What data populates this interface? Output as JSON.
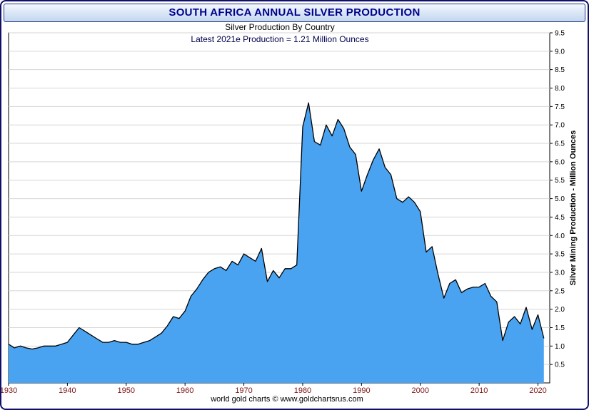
{
  "header": {
    "title": "SOUTH AFRICA ANNUAL SILVER PRODUCTION"
  },
  "chart_data": {
    "type": "area",
    "title": "Silver Production By Country",
    "annotation": "Latest 2021e Production = 1.21 Million Ounces",
    "ylabel": "Silver Mining Production - Million Ounces",
    "ylim": [
      0,
      9.5
    ],
    "ytick_step": 0.5,
    "grid": "horizontal",
    "legend": "none",
    "xticks": [
      1930,
      1940,
      1950,
      1960,
      1970,
      1980,
      1990,
      2000,
      2010,
      2020
    ],
    "years": [
      1930,
      1931,
      1932,
      1933,
      1934,
      1935,
      1936,
      1937,
      1938,
      1939,
      1940,
      1941,
      1942,
      1943,
      1944,
      1945,
      1946,
      1947,
      1948,
      1949,
      1950,
      1951,
      1952,
      1953,
      1954,
      1955,
      1956,
      1957,
      1958,
      1959,
      1960,
      1961,
      1962,
      1963,
      1964,
      1965,
      1966,
      1967,
      1968,
      1969,
      1970,
      1971,
      1972,
      1973,
      1974,
      1975,
      1976,
      1977,
      1978,
      1979,
      1980,
      1981,
      1982,
      1983,
      1984,
      1985,
      1986,
      1987,
      1988,
      1989,
      1990,
      1991,
      1992,
      1993,
      1994,
      1995,
      1996,
      1997,
      1998,
      1999,
      2000,
      2001,
      2002,
      2003,
      2004,
      2005,
      2006,
      2007,
      2008,
      2009,
      2010,
      2011,
      2012,
      2013,
      2014,
      2015,
      2016,
      2017,
      2018,
      2019,
      2020,
      2021
    ],
    "values": [
      1.05,
      0.95,
      1.0,
      0.95,
      0.92,
      0.95,
      1.0,
      1.0,
      1.0,
      1.05,
      1.1,
      1.3,
      1.5,
      1.4,
      1.3,
      1.2,
      1.1,
      1.1,
      1.15,
      1.1,
      1.1,
      1.05,
      1.05,
      1.1,
      1.15,
      1.25,
      1.35,
      1.55,
      1.8,
      1.75,
      1.95,
      2.35,
      2.55,
      2.8,
      3.0,
      3.1,
      3.15,
      3.05,
      3.3,
      3.2,
      3.5,
      3.4,
      3.3,
      3.65,
      2.75,
      3.05,
      2.85,
      3.1,
      3.1,
      3.2,
      6.95,
      7.6,
      6.55,
      6.45,
      7.0,
      6.7,
      7.15,
      6.9,
      6.4,
      6.2,
      5.2,
      5.65,
      6.05,
      6.35,
      5.85,
      5.65,
      5.0,
      4.9,
      5.05,
      4.9,
      4.65,
      3.55,
      3.7,
      2.95,
      2.3,
      2.7,
      2.8,
      2.45,
      2.55,
      2.6,
      2.6,
      2.7,
      2.35,
      2.2,
      1.15,
      1.65,
      1.8,
      1.6,
      2.05,
      1.45,
      1.85,
      1.21
    ],
    "colors": {
      "area_fill": "#4AA3F0",
      "line": "#000000",
      "grid": "#d6d6d6",
      "title": "#00008B",
      "x_tick_labels": "#7d1414",
      "y_tick_labels": "#000000"
    }
  },
  "footer": {
    "credit": "world gold charts © www.goldchartsrus.com"
  }
}
